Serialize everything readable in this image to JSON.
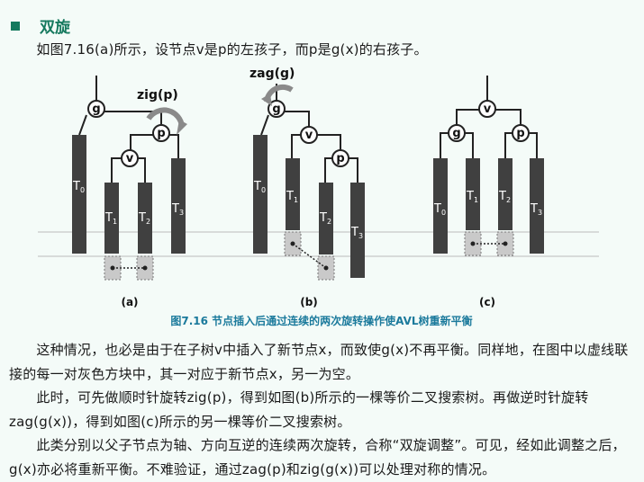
{
  "heading": {
    "title": "双旋"
  },
  "intro": {
    "text": "　　如图7.16(a)所示，设节点v是p的左孩子，而p是g(x)的右孩子。"
  },
  "figure": {
    "caption": "图7.16  节点插入后通过连续的两次旋转操作使AVL树重新平衡",
    "rot_a": "zig(p)",
    "rot_b": "zag(g)",
    "label_a": "(a)",
    "label_b": "(b)",
    "label_c": "(c)",
    "node_g": "g",
    "node_p": "p",
    "node_v": "v",
    "t_letter": "T",
    "s0": "0",
    "s1": "1",
    "s2": "2",
    "s3": "3"
  },
  "paragraphs": [
    "　　这种情况，也必是由于在子树v中插入了新节点x，而致使g(x)不再平衡。同样地，在图中以虚线联接的每一对灰色方块中，其一对应于新节点x，另一为空。",
    "　　此时，可先做顺时针旋转zig(p)，得到如图(b)所示的一棵等价二叉搜索树。再做逆时针旋转zag(g(x))，得到如图(c)所示的另一棵等价二叉搜索树。",
    "　　此类分别以父子节点为轴、方向互逆的连续两次旋转，合称“双旋调整”。可见，经如此调整之后，g(x)亦必将重新平衡。不难验证，通过zag(p)和zig(g(x))可以处理对称的情况。"
  ],
  "colors": {
    "accent": "#15795e",
    "bar": "#404040",
    "arrow": "#8a8a8a",
    "gray_box": "#c9c9c9",
    "caption": "#1b7a9c"
  }
}
